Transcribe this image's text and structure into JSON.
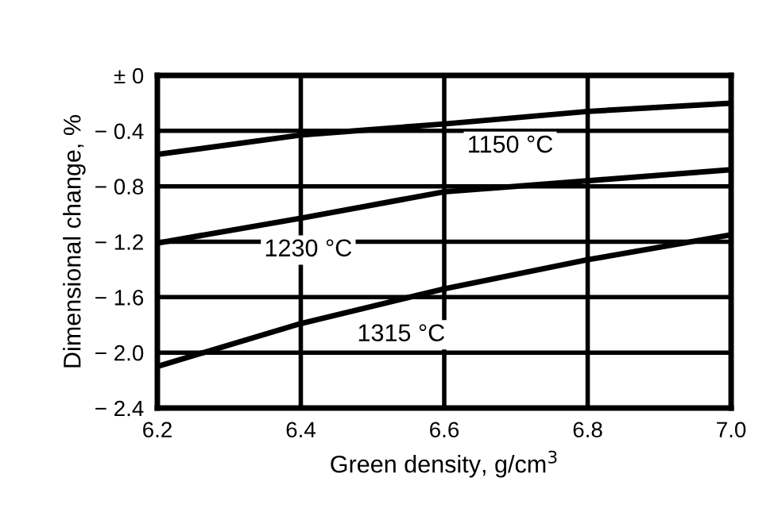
{
  "chart_data": {
    "type": "line",
    "xlabel": "Green density, g/cm$^{3}$",
    "ylabel": "Dimensional change, %",
    "x": [
      6.2,
      6.4,
      6.6,
      6.8,
      7.0
    ],
    "series": [
      {
        "name": "1150 °C",
        "color": "#000000",
        "values": [
          -0.57,
          -0.43,
          -0.35,
          -0.26,
          -0.2
        ]
      },
      {
        "name": "1230 °C",
        "color": "#000000",
        "values": [
          -1.21,
          -1.03,
          -0.84,
          -0.76,
          -0.68
        ]
      },
      {
        "name": "1315 °C",
        "color": "#000000",
        "values": [
          -2.1,
          -1.79,
          -1.54,
          -1.33,
          -1.15
        ]
      }
    ],
    "xlim": [
      6.2,
      7.0
    ],
    "ylim": [
      -2.4,
      0
    ],
    "xticks": [
      6.2,
      6.4,
      6.6,
      6.8,
      {
        "value": 7.0,
        "label": "7.0"
      }
    ],
    "yticks": [
      {
        "value": 0,
        "label": "± 0"
      },
      {
        "value": -0.4,
        "label": "− 0.4"
      },
      {
        "value": -0.8,
        "label": "− 0.8"
      },
      {
        "value": -1.2,
        "label": "− 1.2"
      },
      {
        "value": -1.6,
        "label": "− 1.6"
      },
      {
        "value": -2.0,
        "label": "− 2.0"
      },
      {
        "value": -2.4,
        "label": "− 2.4"
      }
    ],
    "grid": true,
    "marker": "none",
    "line_style": "solid"
  }
}
